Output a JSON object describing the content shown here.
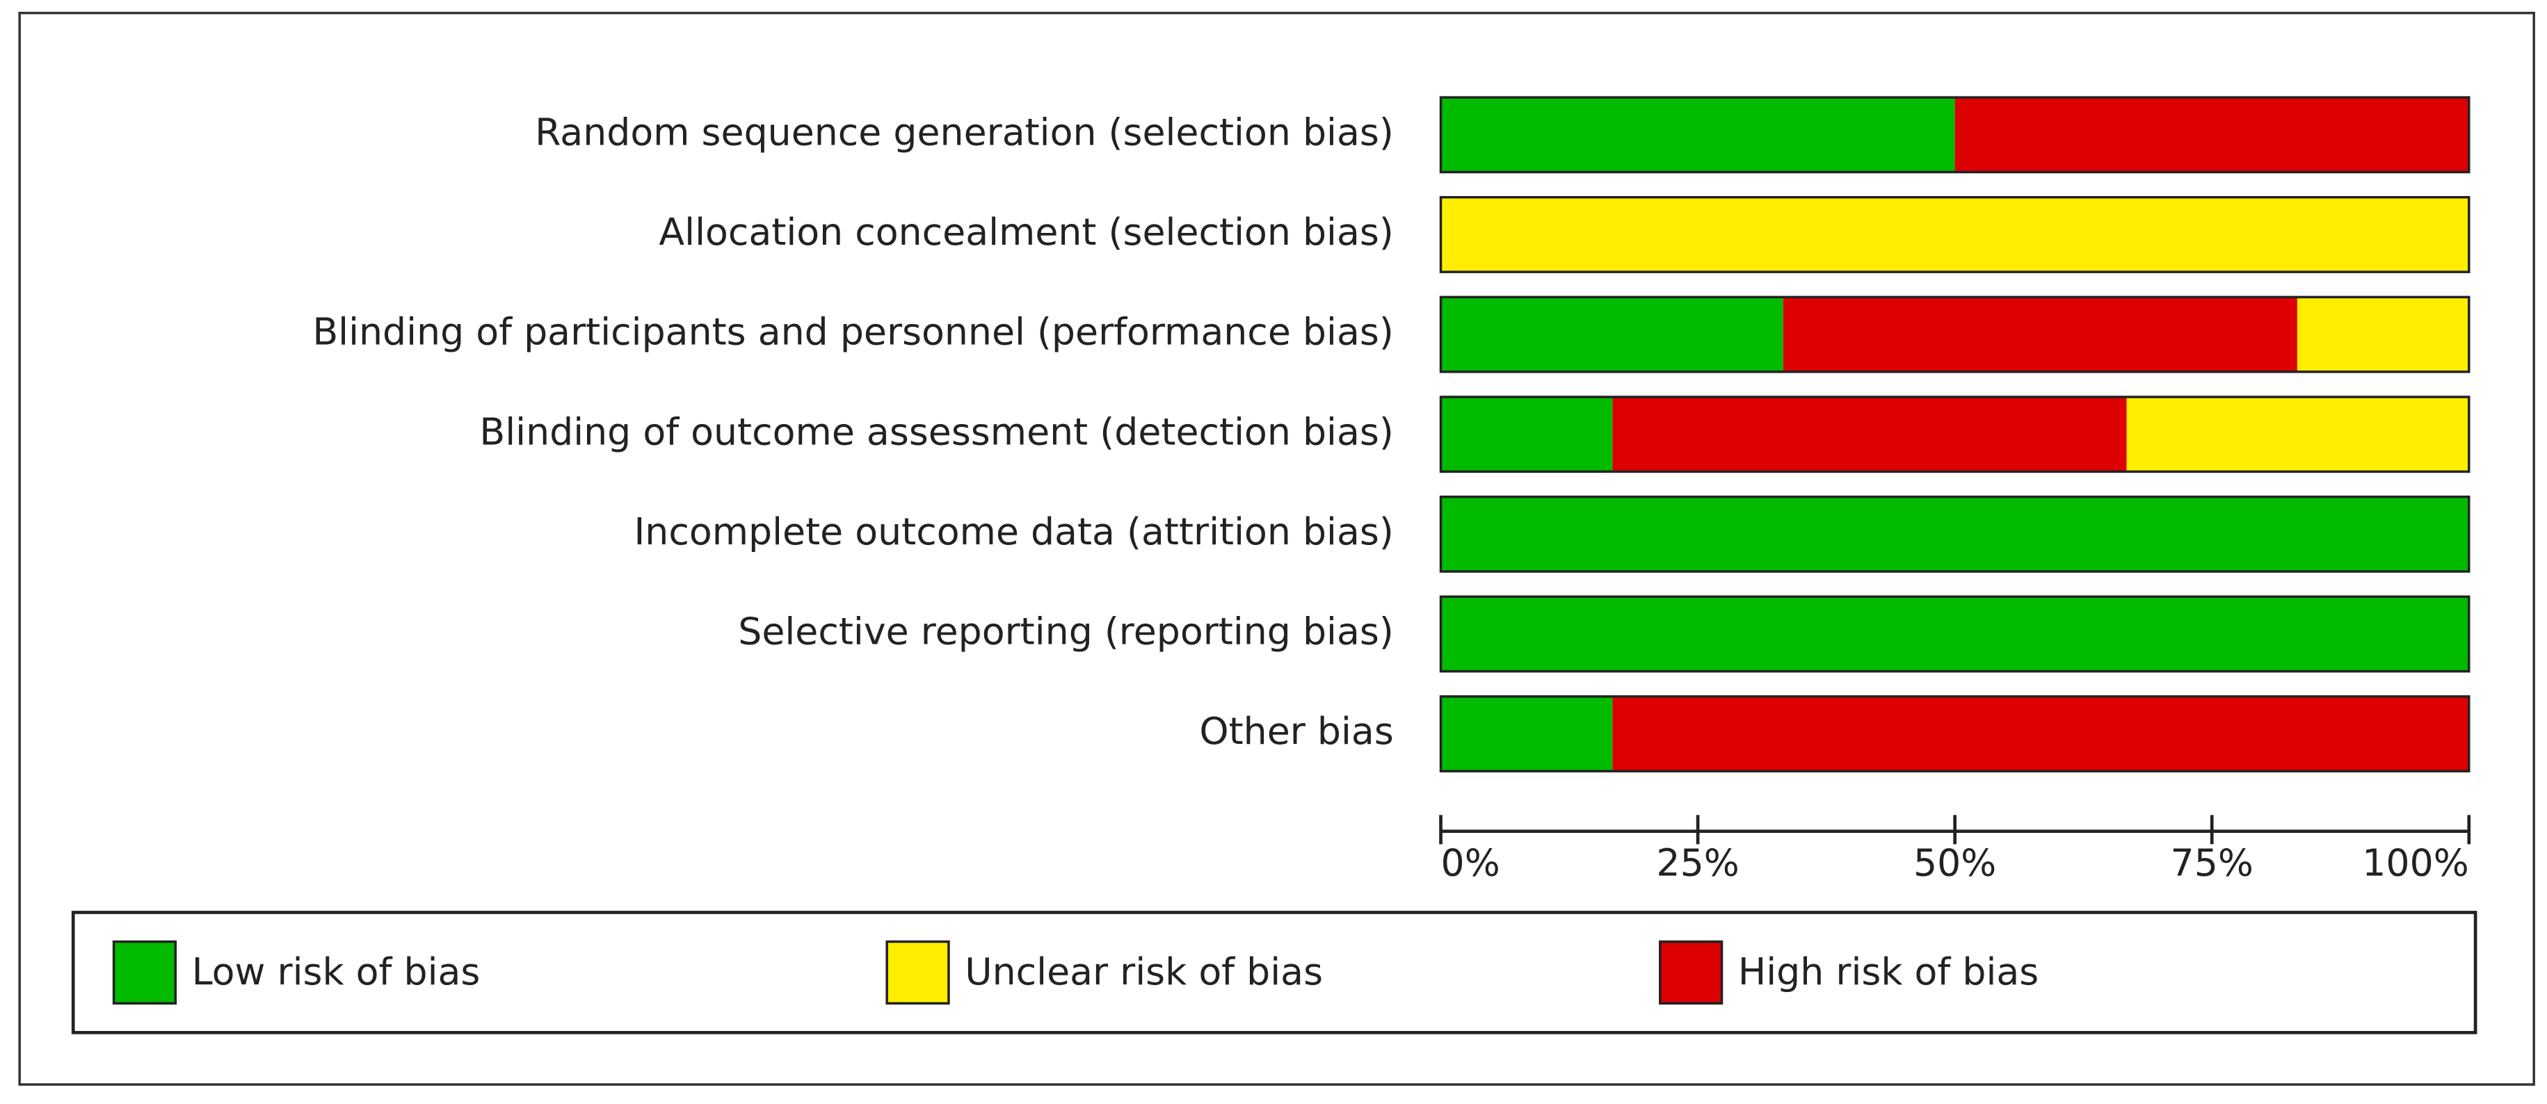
{
  "chart_data": {
    "type": "stacked-bar-horizontal",
    "categories": [
      "Random sequence generation (selection bias)",
      "Allocation concealment (selection bias)",
      "Blinding of participants and personnel (performance bias)",
      "Blinding of outcome assessment (detection bias)",
      "Incomplete outcome data (attrition bias)",
      "Selective reporting (reporting bias)",
      "Other bias"
    ],
    "series": [
      {
        "name": "Low risk of bias",
        "color": "#00bb00",
        "values": [
          50,
          0,
          33.3,
          16.7,
          100,
          100,
          16.7
        ]
      },
      {
        "name": "High risk of bias",
        "color": "#dd0000",
        "values": [
          50,
          0,
          50,
          50,
          0,
          0,
          83.3
        ]
      },
      {
        "name": "Unclear risk of bias",
        "color": "#ffee00",
        "values": [
          0,
          100,
          16.7,
          33.3,
          0,
          0,
          0
        ]
      }
    ],
    "xlim": [
      0,
      100
    ],
    "xticks": [
      {
        "value": 0,
        "label": "0%"
      },
      {
        "value": 25,
        "label": "25%"
      },
      {
        "value": 50,
        "label": "50%"
      },
      {
        "value": 75,
        "label": "75%"
      },
      {
        "value": 100,
        "label": "100%"
      }
    ]
  }
}
